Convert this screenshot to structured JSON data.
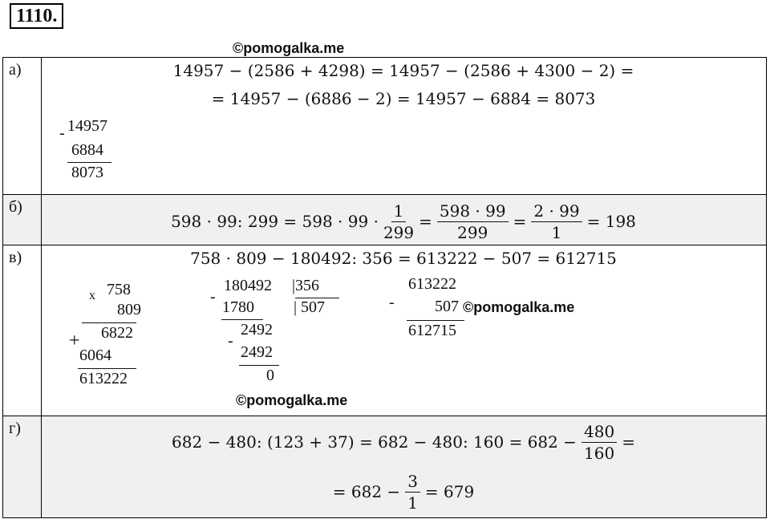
{
  "header": {
    "number": "1110."
  },
  "watermarks": [
    "©pomogalka.me",
    "©pomogalka.me",
    "©pomogalka.me"
  ],
  "rows": {
    "a": {
      "label": "а)",
      "lines": [
        "14957 − (2586 + 4298) = 14957 − (2586 + 4300 − 2) =",
        "= 14957 − (6886 − 2) = 14957 − 6884 = 8073"
      ],
      "column": {
        "sign": "-",
        "top": "14957",
        "bottom": "6884",
        "result": "8073"
      }
    },
    "b": {
      "label": "б)",
      "parts": [
        "598 · 99: 299 = 598 · 99 ·",
        {
          "num": "1",
          "den": "299"
        },
        "=",
        {
          "num": "598 · 99",
          "den": "299"
        },
        "=",
        {
          "num": "2 · 99",
          "den": "1"
        },
        "= 198"
      ]
    },
    "v": {
      "label": "в)",
      "line": "758 · 809 − 180492: 356 = 613222 − 507 = 612715",
      "multiplication": {
        "sign": "x",
        "top": "758",
        "bottom": "809",
        "plus": "+",
        "partial1": "6822",
        "partial2": "6064",
        "result": "613222"
      },
      "division": {
        "sign1": "-",
        "dividend": "180492",
        "divisor": "|356",
        "sub1": "1780",
        "quotient": "| 507",
        "sign2": "-",
        "rem1": "2492",
        "sub2": "2492",
        "rem2": "0"
      },
      "subtraction": {
        "sign": "-",
        "top": "613222",
        "bottom": "507",
        "result": "612715"
      }
    },
    "g": {
      "label": "г)",
      "line1": [
        "682 − 480: (123 + 37) = 682 − 480: 160 = 682 −",
        {
          "num": "480",
          "den": "160"
        },
        "="
      ],
      "line2": [
        "= 682 −",
        {
          "num": "3",
          "den": "1"
        },
        "= 679"
      ]
    }
  }
}
